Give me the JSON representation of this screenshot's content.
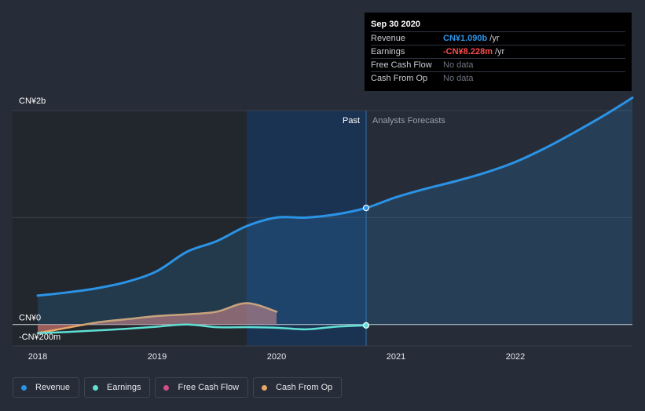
{
  "colors": {
    "background": "#262c38",
    "revenue": "#2b93e6",
    "earnings": "#5fe0d3",
    "free_cash_flow": "#d14e86",
    "cash_from_op": "#e8a767",
    "past_band": "#1b3352"
  },
  "tooltip": {
    "date": "Sep 30 2020",
    "rows": [
      {
        "label": "Revenue",
        "value": "CN¥1.090b",
        "unit": "/yr",
        "color": "#2b93e6"
      },
      {
        "label": "Earnings",
        "value": "-CN¥8.228m",
        "unit": "/yr",
        "color": "#ff4b4b"
      },
      {
        "label": "Free Cash Flow",
        "value": "No data",
        "unit": "",
        "color": ""
      },
      {
        "label": "Cash From Op",
        "value": "No data",
        "unit": "",
        "color": ""
      }
    ]
  },
  "legend": [
    {
      "label": "Revenue",
      "color": "#2b93e6"
    },
    {
      "label": "Earnings",
      "color": "#5fe0d3"
    },
    {
      "label": "Free Cash Flow",
      "color": "#d14e86"
    },
    {
      "label": "Cash From Op",
      "color": "#e8a767"
    }
  ],
  "chart_data": {
    "type": "line",
    "ylabel_top": "CN¥2b",
    "y_tick_labels": [
      {
        "value": 2000,
        "label": "CN¥2b"
      },
      {
        "value": 0,
        "label": "CN¥0"
      },
      {
        "value": -200,
        "label": "-CN¥200m"
      }
    ],
    "ylim": [
      -200,
      2000
    ],
    "xlim": [
      2018,
      2022.98
    ],
    "x_tick_labels": [
      "2018",
      "2019",
      "2020",
      "2021",
      "2022"
    ],
    "x_tick_values": [
      2018,
      2019,
      2020,
      2021,
      2022
    ],
    "past_label": "Past",
    "forecast_label": "Analysts Forecasts",
    "past_end": 2020.75,
    "past_band_start": 2019.75,
    "highlight_x": 2020.75,
    "series": [
      {
        "name": "Revenue",
        "key": "revenue",
        "values": [
          [
            2018,
            270
          ],
          [
            2018.25,
            300
          ],
          [
            2018.5,
            340
          ],
          [
            2018.75,
            400
          ],
          [
            2019,
            500
          ],
          [
            2019.25,
            680
          ],
          [
            2019.5,
            780
          ],
          [
            2019.75,
            920
          ],
          [
            2020,
            1000
          ],
          [
            2020.25,
            1000
          ],
          [
            2020.5,
            1030
          ],
          [
            2020.75,
            1090
          ],
          [
            2021,
            1190
          ],
          [
            2021.25,
            1270
          ],
          [
            2021.5,
            1340
          ],
          [
            2021.75,
            1420
          ],
          [
            2022,
            1520
          ],
          [
            2022.25,
            1650
          ],
          [
            2022.5,
            1800
          ],
          [
            2022.75,
            1960
          ],
          [
            2022.98,
            2120
          ]
        ]
      },
      {
        "name": "Earnings",
        "key": "earnings",
        "values": [
          [
            2018,
            -80
          ],
          [
            2018.25,
            -70
          ],
          [
            2018.5,
            -55
          ],
          [
            2018.75,
            -40
          ],
          [
            2019,
            -20
          ],
          [
            2019.25,
            0
          ],
          [
            2019.5,
            -25
          ],
          [
            2019.75,
            -25
          ],
          [
            2020,
            -30
          ],
          [
            2020.25,
            -45
          ],
          [
            2020.5,
            -20
          ],
          [
            2020.75,
            -8.228
          ]
        ]
      },
      {
        "name": "Free Cash Flow",
        "key": "free_cash_flow",
        "values": [
          [
            2018,
            -80
          ],
          [
            2018.25,
            -30
          ],
          [
            2018.5,
            20
          ],
          [
            2018.75,
            50
          ],
          [
            2019,
            80
          ],
          [
            2019.25,
            95
          ],
          [
            2019.5,
            120
          ],
          [
            2019.75,
            200
          ],
          [
            2020,
            120
          ]
        ]
      },
      {
        "name": "Cash From Op",
        "key": "cash_from_op",
        "values": [
          [
            2018,
            -80
          ],
          [
            2018.25,
            -30
          ],
          [
            2018.5,
            20
          ],
          [
            2018.75,
            50
          ],
          [
            2019,
            80
          ],
          [
            2019.25,
            95
          ],
          [
            2019.5,
            120
          ],
          [
            2019.75,
            200
          ],
          [
            2020,
            120
          ]
        ]
      }
    ]
  }
}
